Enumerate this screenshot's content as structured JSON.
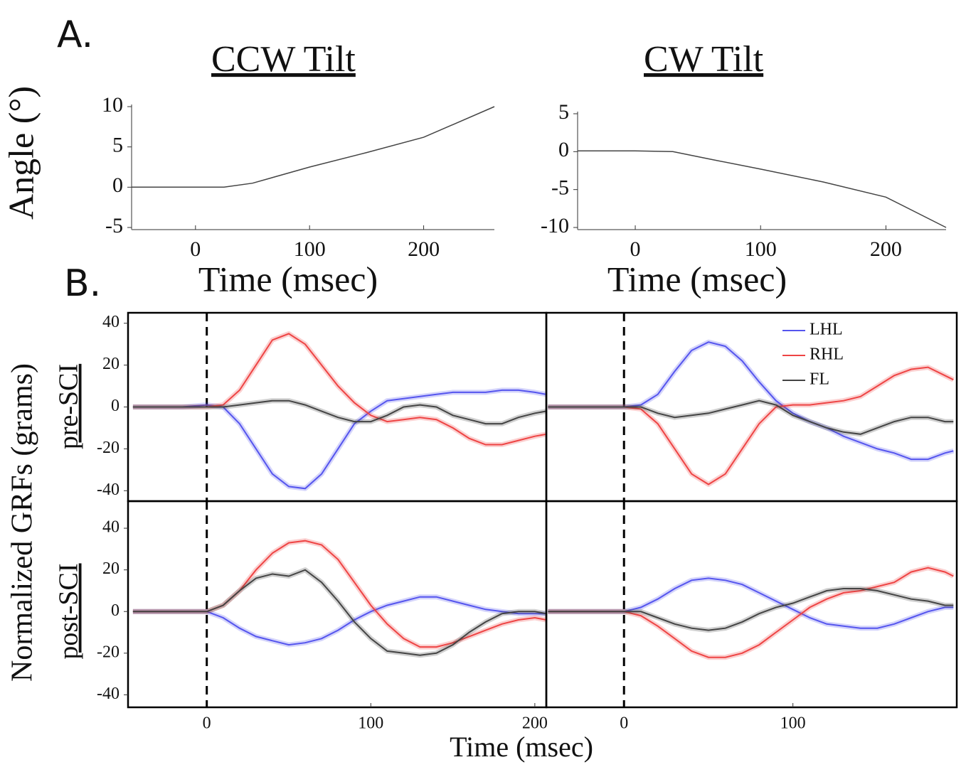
{
  "panel_labels": [
    "A.",
    "B."
  ],
  "chart_data": [
    {
      "type": "line",
      "title": "CCW Tilt",
      "ylabel": "Angle (°)",
      "xlabel": "Time (msec)",
      "xlim": [
        -56,
        262
      ],
      "ylim": [
        -5,
        10
      ],
      "xticks": [
        0,
        100,
        200
      ],
      "yticks": [
        -5,
        0,
        5,
        10
      ],
      "x": [
        -56,
        0,
        25,
        50,
        100,
        150,
        200,
        262
      ],
      "series": [
        {
          "color": "#444444",
          "values": [
            0,
            0,
            0,
            0.5,
            2.5,
            4.3,
            6.2,
            10
          ]
        }
      ]
    },
    {
      "type": "line",
      "title": "CW Tilt",
      "xlabel": "Time (msec)",
      "xlim": [
        -46,
        248
      ],
      "ylim": [
        -10,
        5
      ],
      "xticks": [
        0,
        100,
        200
      ],
      "yticks": [
        -10,
        -5,
        0,
        5
      ],
      "x": [
        -46,
        0,
        30,
        60,
        100,
        150,
        200,
        248
      ],
      "series": [
        {
          "color": "#444444",
          "values": [
            0.1,
            0.1,
            0,
            -1,
            -2.3,
            -4,
            -6,
            -10
          ]
        }
      ]
    },
    {
      "type": "line",
      "ylabel": "Normalized GRFs (grams)",
      "row_label": "pre-SCI",
      "vline": 0,
      "xlim": [
        -48,
        207
      ],
      "ylim": [
        -45,
        45
      ],
      "yticks": [
        -40,
        -20,
        0,
        20,
        40
      ],
      "x": [
        -45,
        -30,
        -15,
        0,
        10,
        20,
        30,
        40,
        50,
        60,
        70,
        80,
        90,
        100,
        110,
        120,
        130,
        140,
        150,
        160,
        170,
        180,
        190,
        200,
        207
      ],
      "series": [
        {
          "color": "#5555ee",
          "values": [
            0,
            0,
            0,
            1,
            0,
            -8,
            -20,
            -32,
            -38,
            -39,
            -32,
            -20,
            -8,
            -2,
            3,
            4,
            5,
            6,
            7,
            7,
            7,
            8,
            8,
            7,
            6
          ]
        },
        {
          "color": "#ee4444",
          "values": [
            0,
            0,
            0,
            0,
            1,
            8,
            20,
            32,
            35,
            30,
            20,
            10,
            2,
            -4,
            -7,
            -6,
            -5,
            -6,
            -10,
            -15,
            -18,
            -18,
            -16,
            -14,
            -13
          ]
        },
        {
          "color": "#444444",
          "values": [
            0,
            0,
            0,
            0,
            0,
            1,
            2,
            3,
            3,
            1,
            -2,
            -5,
            -7,
            -7,
            -4,
            0,
            1,
            0,
            -4,
            -6,
            -8,
            -8,
            -5,
            -3,
            -2
          ]
        }
      ]
    },
    {
      "type": "line",
      "vline": 0,
      "legend": "upper right",
      "xlim": [
        -46,
        197
      ],
      "ylim": [
        -45,
        45
      ],
      "x": [
        -45,
        -30,
        -15,
        0,
        10,
        20,
        30,
        40,
        50,
        60,
        70,
        80,
        90,
        100,
        110,
        120,
        130,
        140,
        150,
        160,
        170,
        180,
        190,
        195
      ],
      "series": [
        {
          "name": "LHL",
          "color": "#5555ee",
          "values": [
            0,
            0,
            0,
            0,
            1,
            6,
            17,
            27,
            31,
            29,
            22,
            12,
            3,
            -3,
            -7,
            -10,
            -14,
            -17,
            -20,
            -22,
            -25,
            -25,
            -22,
            -21
          ]
        },
        {
          "name": "RHL",
          "color": "#ee4444",
          "values": [
            0,
            0,
            0,
            0,
            -1,
            -8,
            -20,
            -32,
            -37,
            -32,
            -20,
            -8,
            0,
            1,
            1,
            2,
            3,
            5,
            10,
            15,
            18,
            19,
            15,
            13
          ]
        },
        {
          "name": "FL",
          "color": "#444444",
          "values": [
            0,
            0,
            0,
            0,
            0,
            -3,
            -5,
            -4,
            -3,
            -1,
            1,
            3,
            1,
            -4,
            -7,
            -10,
            -12,
            -13,
            -10,
            -7,
            -5,
            -5,
            -7,
            -7
          ]
        }
      ]
    },
    {
      "type": "line",
      "row_label": "post-SCI",
      "xlabel": "Time (msec)",
      "vline": 0,
      "xlim": [
        -48,
        207
      ],
      "ylim": [
        -46,
        53
      ],
      "xticks": [
        0,
        100,
        200
      ],
      "yticks": [
        -40,
        -20,
        0,
        20,
        40
      ],
      "x": [
        -45,
        -30,
        -15,
        0,
        10,
        20,
        30,
        40,
        50,
        60,
        70,
        80,
        90,
        100,
        110,
        120,
        130,
        140,
        150,
        160,
        170,
        180,
        190,
        200,
        207
      ],
      "series": [
        {
          "color": "#5555ee",
          "values": [
            0,
            0,
            0,
            0,
            -3,
            -8,
            -12,
            -14,
            -16,
            -15,
            -13,
            -9,
            -4,
            0,
            3,
            5,
            7,
            7,
            5,
            3,
            1,
            0,
            -1,
            -1,
            -1
          ]
        },
        {
          "color": "#ee4444",
          "values": [
            0,
            0,
            0,
            0,
            3,
            10,
            20,
            28,
            33,
            34,
            32,
            25,
            14,
            3,
            -6,
            -13,
            -17,
            -17,
            -15,
            -12,
            -9,
            -6,
            -4,
            -3,
            -4
          ]
        },
        {
          "color": "#444444",
          "values": [
            0,
            0,
            0,
            0,
            3,
            10,
            16,
            18,
            17,
            20,
            14,
            5,
            -5,
            -13,
            -19,
            -20,
            -21,
            -20,
            -16,
            -10,
            -5,
            -1,
            0,
            0,
            -1
          ]
        }
      ]
    },
    {
      "type": "line",
      "vline": 0,
      "xlim": [
        -46,
        197
      ],
      "ylim": [
        -46,
        53
      ],
      "xticks": [
        0,
        100
      ],
      "x": [
        -45,
        -30,
        -15,
        0,
        10,
        20,
        30,
        40,
        50,
        60,
        70,
        80,
        90,
        100,
        110,
        120,
        130,
        140,
        150,
        160,
        170,
        180,
        190,
        195
      ],
      "series": [
        {
          "color": "#5555ee",
          "values": [
            0,
            0,
            0,
            0,
            2,
            6,
            11,
            15,
            16,
            15,
            13,
            9,
            5,
            1,
            -3,
            -6,
            -7,
            -8,
            -8,
            -6,
            -3,
            0,
            2,
            2
          ]
        },
        {
          "color": "#ee4444",
          "values": [
            0,
            0,
            0,
            0,
            -2,
            -7,
            -13,
            -19,
            -22,
            -22,
            -20,
            -16,
            -10,
            -4,
            2,
            6,
            9,
            10,
            12,
            14,
            19,
            21,
            19,
            17
          ]
        },
        {
          "color": "#444444",
          "values": [
            0,
            0,
            0,
            0,
            0,
            -3,
            -6,
            -8,
            -9,
            -8,
            -5,
            -1,
            2,
            4,
            7,
            10,
            11,
            11,
            10,
            8,
            6,
            5,
            3,
            3
          ]
        }
      ]
    }
  ]
}
